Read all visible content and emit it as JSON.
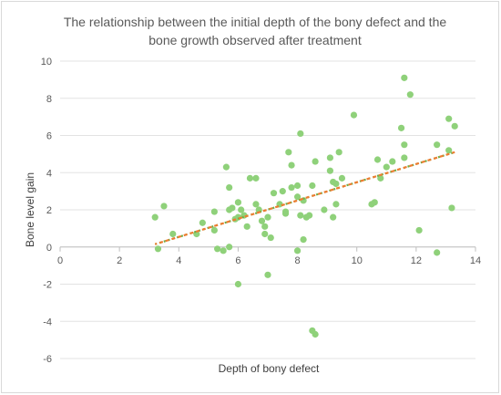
{
  "chart_data": {
    "type": "scatter",
    "title_lines": [
      "The relationship between the initial depth of the bony defect and the",
      "bone growth observed after treatment"
    ],
    "xlabel": "Depth of bony defect",
    "ylabel": "Bone level gain",
    "xlim": [
      0,
      14
    ],
    "ylim": [
      -6,
      10
    ],
    "x_ticks": [
      0,
      2,
      4,
      6,
      8,
      10,
      12,
      14
    ],
    "y_ticks": [
      -6,
      -4,
      -2,
      0,
      2,
      4,
      6,
      8,
      10
    ],
    "grid": "horizontal",
    "legend": "none",
    "marker_color": "#8fd17a",
    "trendline_colors": [
      "#ed7d31",
      "#70ad47"
    ],
    "trendline": {
      "x": [
        3.2,
        13.3
      ],
      "y": [
        0.15,
        5.1
      ]
    },
    "points": [
      [
        3.2,
        1.6
      ],
      [
        3.3,
        -0.1
      ],
      [
        3.5,
        2.2
      ],
      [
        3.8,
        0.7
      ],
      [
        4.6,
        0.7
      ],
      [
        4.8,
        1.3
      ],
      [
        5.2,
        1.9
      ],
      [
        5.2,
        0.9
      ],
      [
        5.3,
        -0.1
      ],
      [
        5.5,
        -0.2
      ],
      [
        5.6,
        4.3
      ],
      [
        5.7,
        2.0
      ],
      [
        5.7,
        0.0
      ],
      [
        5.7,
        3.2
      ],
      [
        5.8,
        2.1
      ],
      [
        5.9,
        1.5
      ],
      [
        6.0,
        2.4
      ],
      [
        6.0,
        1.6
      ],
      [
        6.0,
        -2.0
      ],
      [
        6.1,
        2.0
      ],
      [
        6.2,
        1.7
      ],
      [
        6.3,
        1.1
      ],
      [
        6.4,
        3.7
      ],
      [
        6.6,
        3.7
      ],
      [
        6.6,
        2.3
      ],
      [
        6.7,
        2.0
      ],
      [
        6.8,
        1.4
      ],
      [
        6.9,
        1.1
      ],
      [
        6.9,
        0.7
      ],
      [
        7.0,
        1.6
      ],
      [
        7.0,
        -1.5
      ],
      [
        7.1,
        0.5
      ],
      [
        7.2,
        2.9
      ],
      [
        7.4,
        2.3
      ],
      [
        7.5,
        3.0
      ],
      [
        7.6,
        1.8
      ],
      [
        7.6,
        1.9
      ],
      [
        7.7,
        5.1
      ],
      [
        7.8,
        4.4
      ],
      [
        7.8,
        3.2
      ],
      [
        8.0,
        3.3
      ],
      [
        8.0,
        2.7
      ],
      [
        8.0,
        -0.2
      ],
      [
        8.1,
        6.1
      ],
      [
        8.1,
        1.7
      ],
      [
        8.2,
        0.4
      ],
      [
        8.2,
        2.5
      ],
      [
        8.3,
        1.6
      ],
      [
        8.4,
        1.7
      ],
      [
        8.5,
        3.3
      ],
      [
        8.5,
        -4.5
      ],
      [
        8.6,
        -4.7
      ],
      [
        8.6,
        4.6
      ],
      [
        8.9,
        2.0
      ],
      [
        9.1,
        4.8
      ],
      [
        9.1,
        4.1
      ],
      [
        9.2,
        3.5
      ],
      [
        9.2,
        1.6
      ],
      [
        9.3,
        2.3
      ],
      [
        9.3,
        3.4
      ],
      [
        9.4,
        5.1
      ],
      [
        9.5,
        3.7
      ],
      [
        9.9,
        7.1
      ],
      [
        10.5,
        2.3
      ],
      [
        10.6,
        2.4
      ],
      [
        10.7,
        4.7
      ],
      [
        10.8,
        3.7
      ],
      [
        11.0,
        4.3
      ],
      [
        11.2,
        4.6
      ],
      [
        11.5,
        6.4
      ],
      [
        11.6,
        5.5
      ],
      [
        11.6,
        4.8
      ],
      [
        11.6,
        9.1
      ],
      [
        11.8,
        8.2
      ],
      [
        12.1,
        0.9
      ],
      [
        12.7,
        5.5
      ],
      [
        12.7,
        -0.3
      ],
      [
        13.1,
        6.9
      ],
      [
        13.1,
        5.2
      ],
      [
        13.2,
        2.1
      ],
      [
        13.3,
        6.5
      ]
    ]
  }
}
